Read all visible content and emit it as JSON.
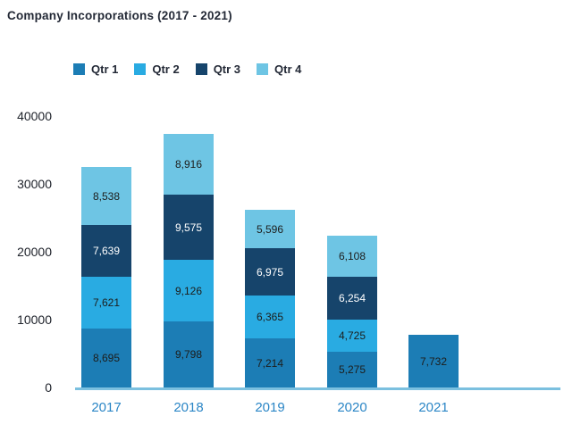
{
  "chart_data": {
    "type": "bar",
    "stacked": true,
    "title": "Company Incorporations (2017 - 2021)",
    "categories": [
      "2017",
      "2018",
      "2019",
      "2020",
      "2021"
    ],
    "series": [
      {
        "name": "Qtr 1",
        "color": "#1C7DB5",
        "label_color": "#1D1D1B",
        "values": [
          8695,
          9798,
          7214,
          5275,
          7732
        ]
      },
      {
        "name": "Qtr 2",
        "color": "#29ABE2",
        "label_color": "#1D1D1B",
        "values": [
          7621,
          9126,
          6365,
          4725,
          null
        ]
      },
      {
        "name": "Qtr 3",
        "color": "#16446B",
        "label_color": "#FFFFFF",
        "values": [
          7639,
          9575,
          6975,
          6254,
          null
        ]
      },
      {
        "name": "Qtr 4",
        "color": "#6EC5E4",
        "label_color": "#1D1D1B",
        "values": [
          8538,
          8916,
          5596,
          6108,
          null
        ]
      }
    ],
    "y_axis": {
      "min": 0,
      "max": 40000,
      "ticks": [
        0,
        10000,
        20000,
        30000,
        40000
      ]
    },
    "xlabel": "",
    "ylabel": "",
    "legend_position": "top",
    "grid": false,
    "colors": {
      "title": "#232936",
      "legend_text": "#232936",
      "y_tick_text": "#20242C",
      "x_tick_text": "#2B86C6",
      "axis_line": "#7BC0DF",
      "background": "#FFFFFF"
    }
  }
}
